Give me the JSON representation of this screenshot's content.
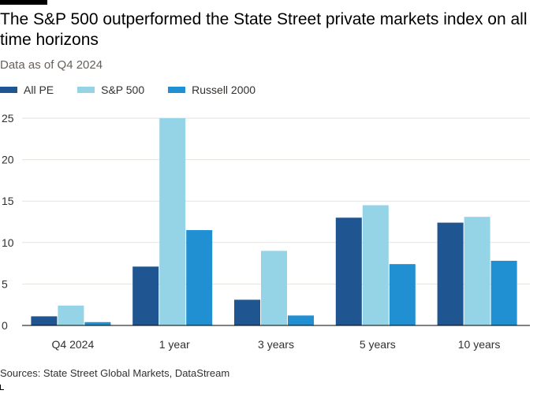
{
  "header": {
    "title": "The S&P 500 outperformed the State Street private markets index on all time horizons",
    "subtitle": "Data as of Q4 2024"
  },
  "footer": {
    "source": "Sources: State Street Global Markets, DataStream"
  },
  "chart_data": {
    "type": "bar",
    "title": "The S&P 500 outperformed the State Street private markets index on all time horizons",
    "subtitle": "Data as of Q4 2024",
    "categories": [
      "Q4 2024",
      "1 year",
      "3 years",
      "5 years",
      "10 years"
    ],
    "series": [
      {
        "name": "All PE",
        "color": "#1f5591",
        "values": [
          1.1,
          7.1,
          3.1,
          13.0,
          12.4
        ]
      },
      {
        "name": "S&P 500",
        "color": "#95d4e7",
        "values": [
          2.4,
          25.0,
          9.0,
          14.5,
          13.1
        ]
      },
      {
        "name": "Russell 2000",
        "color": "#2190d3",
        "values": [
          0.4,
          11.5,
          1.2,
          7.4,
          7.8
        ]
      }
    ],
    "xlabel": "",
    "ylabel": "",
    "ylim": [
      0,
      25
    ],
    "yticks": [
      0,
      5,
      10,
      15,
      20,
      25
    ],
    "grid": true,
    "legend_position": "top-left"
  }
}
